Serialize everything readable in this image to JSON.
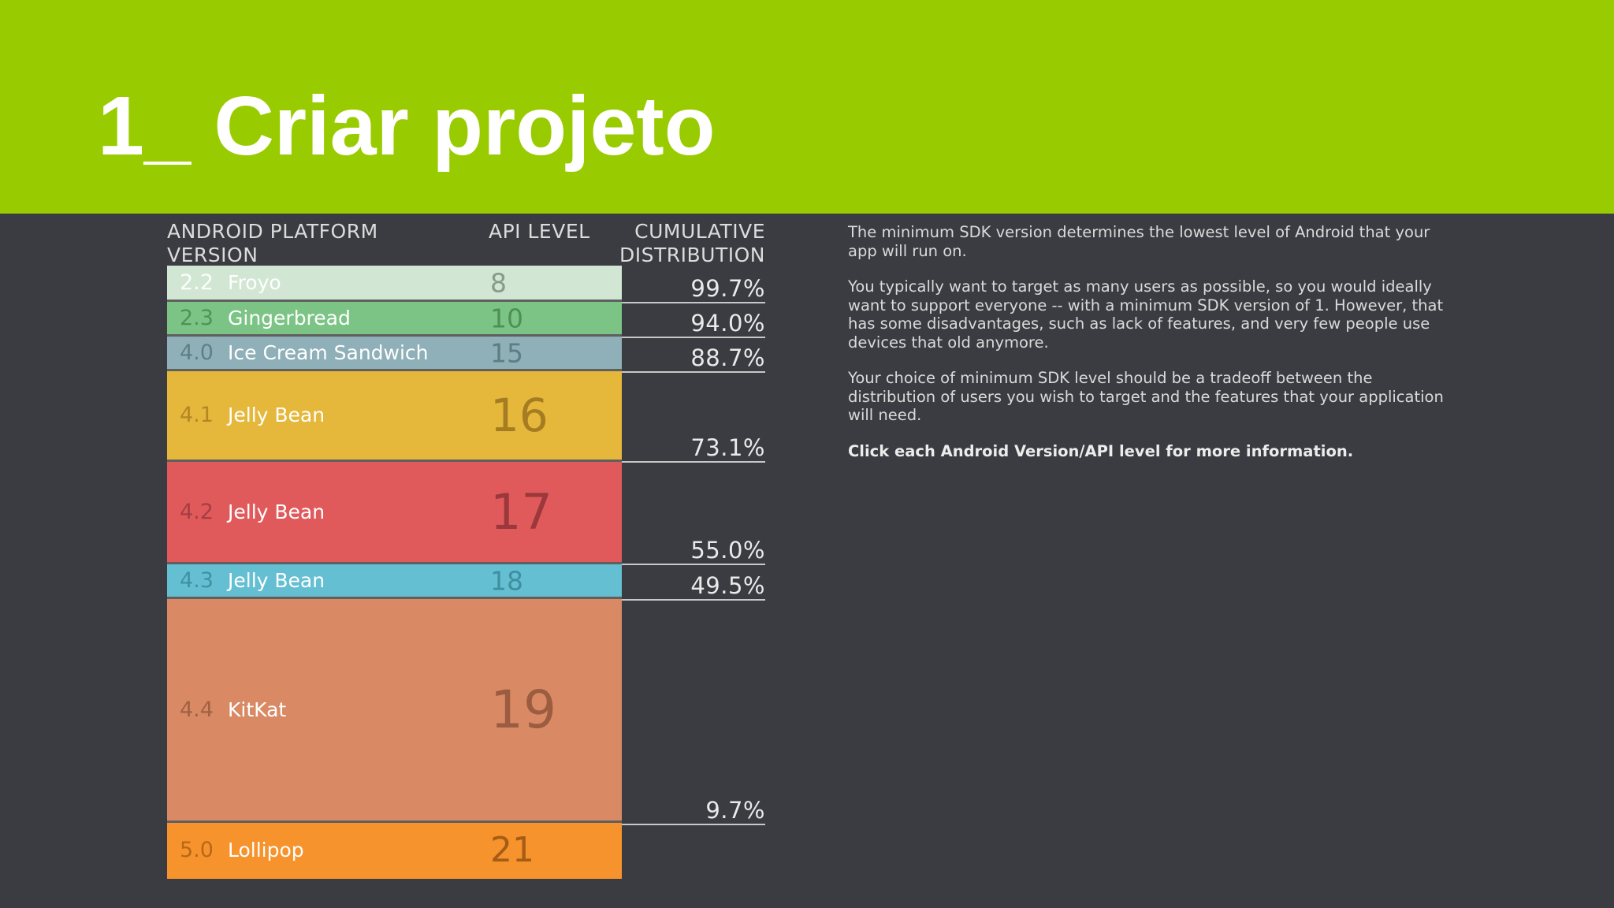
{
  "slide": {
    "title": "1_ Criar projeto",
    "header_color": "#99cc00"
  },
  "table": {
    "col_version": "ANDROID PLATFORM\nVERSION",
    "col_api": "API LEVEL",
    "col_cumulative": "CUMULATIVE\nDISTRIBUTION",
    "rows": [
      {
        "version": "2.2",
        "name": "Froyo",
        "api": "8",
        "cumulative": "99.7%",
        "color": "#d1e6d3"
      },
      {
        "version": "2.3",
        "name": "Gingerbread",
        "api": "10",
        "cumulative": "94.0%",
        "color": "#7cc485"
      },
      {
        "version": "4.0",
        "name": "Ice Cream Sandwich",
        "api": "15",
        "cumulative": "88.7%",
        "color": "#8fb0b8"
      },
      {
        "version": "4.1",
        "name": "Jelly Bean",
        "api": "16",
        "cumulative": "73.1%",
        "color": "#e5b73b"
      },
      {
        "version": "4.2",
        "name": "Jelly Bean",
        "api": "17",
        "cumulative": "55.0%",
        "color": "#e05a5c"
      },
      {
        "version": "4.3",
        "name": "Jelly Bean",
        "api": "18",
        "cumulative": "49.5%",
        "color": "#65bfd2"
      },
      {
        "version": "4.4",
        "name": "KitKat",
        "api": "19",
        "cumulative": "9.7%",
        "color": "#d98a65"
      },
      {
        "version": "5.0",
        "name": "Lollipop",
        "api": "21",
        "cumulative": "",
        "color": "#f6932c"
      }
    ]
  },
  "info": {
    "p1": "The minimum SDK version determines the lowest level of Android that your app will run on.",
    "p2": "You typically want to target as many users as possible, so you would ideally want to support everyone -- with a minimum SDK version of 1. However, that has some disadvantages, such as lack of features, and very few people use devices that old anymore.",
    "p3": "Your choice of minimum SDK level should be a tradeoff between the distribution of users you wish to target and the features that your application will need.",
    "p4": "Click each Android Version/API level for more information."
  }
}
